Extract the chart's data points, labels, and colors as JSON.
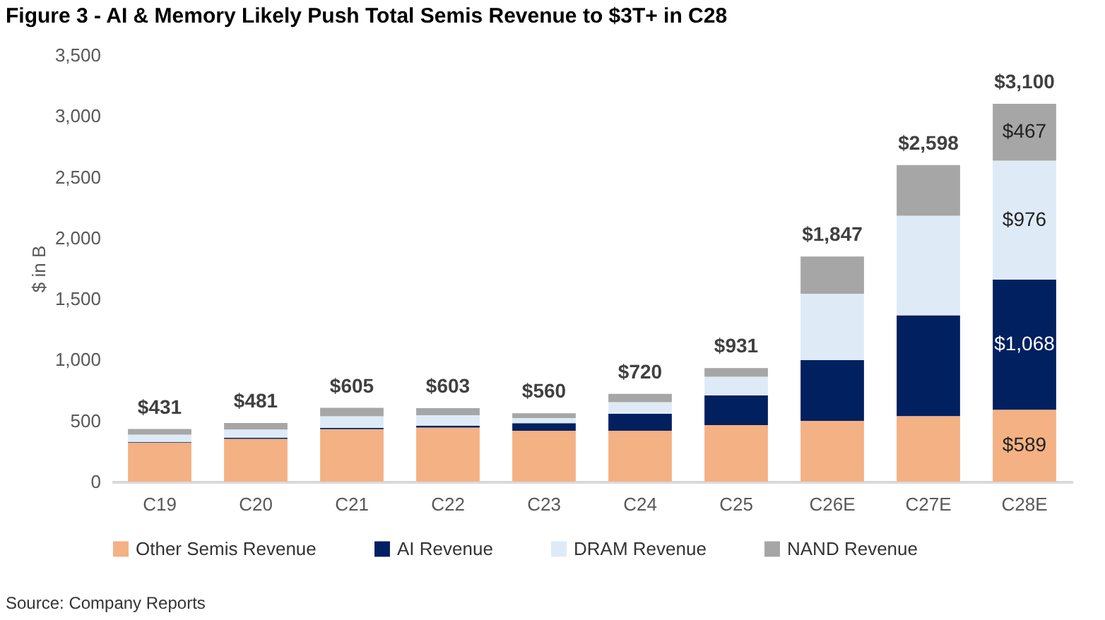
{
  "chart_data": {
    "type": "bar",
    "title": "Figure 3 - AI & Memory Likely Push Total Semis Revenue to $3T+ in C28",
    "ylabel": "$ in B",
    "annotations": [
      "Source: Company Reports"
    ],
    "categories": [
      "C19",
      "C20",
      "C21",
      "C22",
      "C23",
      "C24",
      "C25",
      "C26E",
      "C27E",
      "C28E"
    ],
    "stacked": true,
    "series": [
      {
        "name": "Other Semis Revenue",
        "color": "#f4b183",
        "values": [
          320,
          350,
          430,
          444,
          417,
          417,
          463,
          498,
          537,
          589
        ],
        "value_labels": [
          null,
          null,
          null,
          null,
          null,
          null,
          null,
          null,
          null,
          "$589"
        ]
      },
      {
        "name": "AI Revenue",
        "color": "#002060",
        "values": [
          5,
          10,
          10,
          15,
          62,
          139,
          244,
          499,
          827,
          1068
        ],
        "value_labels": [
          null,
          null,
          null,
          null,
          null,
          null,
          null,
          null,
          null,
          "$1,068"
        ]
      },
      {
        "name": "DRAM Revenue",
        "color": "#deebf7",
        "values": [
          60,
          68,
          96,
          86,
          42,
          96,
          154,
          544,
          818,
          976
        ],
        "value_labels": [
          null,
          null,
          null,
          null,
          null,
          null,
          null,
          null,
          null,
          "$976"
        ]
      },
      {
        "name": "NAND Revenue",
        "color": "#a6a6a6",
        "values": [
          46,
          53,
          69,
          58,
          39,
          68,
          70,
          306,
          416,
          467
        ],
        "value_labels": [
          null,
          null,
          null,
          null,
          null,
          null,
          null,
          null,
          null,
          "$467"
        ]
      }
    ],
    "totals": [
      "$431",
      "$481",
      "$605",
      "$603",
      "$560",
      "$720",
      "$931",
      "$1,847",
      "$2,598",
      "$3,100"
    ],
    "ylim": [
      0,
      3500
    ],
    "yticks": [
      0,
      500,
      {
        "value": 1000,
        "label": "1,000"
      },
      {
        "value": 1500,
        "label": "1,500"
      },
      {
        "value": 2000,
        "label": "2,000"
      },
      {
        "value": 2500,
        "label": "2,500"
      },
      {
        "value": 3000,
        "label": "3,000"
      },
      {
        "value": 3500,
        "label": "3,500"
      }
    ],
    "grid": false,
    "legend": "bottom"
  }
}
